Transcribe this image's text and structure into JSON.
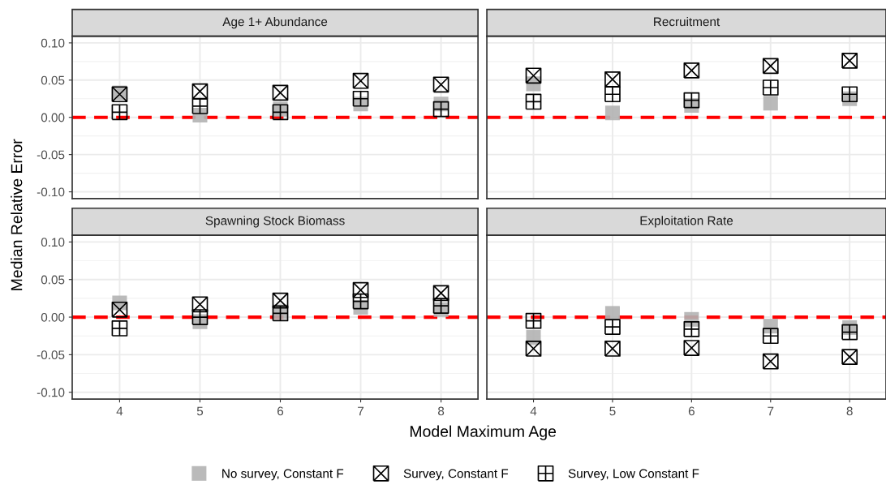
{
  "chart_data": [
    {
      "type": "scatter",
      "title": "Age 1+ Abundance",
      "ylabel": "Median Relative Error",
      "categories": [
        "4",
        "5",
        "6",
        "7",
        "8"
      ],
      "ylim": [
        -0.109,
        0.109
      ],
      "yticks": [
        {
          "value": -0.1,
          "label": "-0.10"
        },
        {
          "value": -0.05,
          "label": "-0.05"
        },
        {
          "value": 0,
          "label": "0.00"
        },
        {
          "value": 0.05,
          "label": "0.05"
        },
        {
          "value": 0.1,
          "label": "0.10"
        }
      ],
      "grid": true,
      "tick_labels": "y",
      "legend": "bottom",
      "ref_lines": [
        {
          "axis": "y",
          "value": 0,
          "color": "#ff0000",
          "line_style": "dashed"
        }
      ],
      "series": [
        {
          "name": "No survey, Constant F",
          "color": "#b3b3b3",
          "marker": "square",
          "values": [
            0.033,
            0.003,
            0.011,
            0.018,
            0.018
          ]
        },
        {
          "name": "Survey, Constant F",
          "color": "#000000",
          "marker": "cross",
          "values": [
            0.031,
            0.035,
            0.033,
            0.049,
            0.044
          ]
        },
        {
          "name": "Survey, Low Constant F",
          "color": "#000000",
          "marker": "plus",
          "values": [
            0.007,
            0.015,
            0.007,
            0.025,
            0.011
          ]
        }
      ]
    },
    {
      "type": "scatter",
      "title": "Recruitment",
      "categories": [
        "4",
        "5",
        "6",
        "7",
        "8"
      ],
      "ylim": [
        -0.109,
        0.109
      ],
      "yticks": [
        {
          "value": -0.1,
          "label": null
        },
        {
          "value": -0.05,
          "label": null
        },
        {
          "value": 0,
          "label": null
        },
        {
          "value": 0.05,
          "label": null
        },
        {
          "value": 0.1,
          "label": null
        }
      ],
      "grid": true,
      "tick_labels": false,
      "ref_lines": [
        {
          "axis": "y",
          "value": 0,
          "color": "#ff0000",
          "line_style": "dashed"
        }
      ],
      "series": [
        {
          "color": "#b3b3b3",
          "marker": "square",
          "values": [
            0.045,
            0.006,
            0.016,
            0.019,
            0.025
          ]
        },
        {
          "color": "#000000",
          "marker": "cross",
          "values": [
            0.056,
            0.051,
            0.063,
            0.069,
            0.076
          ]
        },
        {
          "color": "#000000",
          "marker": "plus",
          "values": [
            0.021,
            0.031,
            0.023,
            0.04,
            0.031
          ]
        }
      ]
    },
    {
      "type": "scatter",
      "title": "Spawning Stock Biomass",
      "categories": [
        "4",
        "5",
        "6",
        "7",
        "8"
      ],
      "ylim": [
        -0.109,
        0.109
      ],
      "yticks": [
        {
          "value": -0.1,
          "label": "-0.10"
        },
        {
          "value": -0.05,
          "label": "-0.05"
        },
        {
          "value": 0,
          "label": "0.00"
        },
        {
          "value": 0.05,
          "label": "0.05"
        },
        {
          "value": 0.1,
          "label": "0.10"
        }
      ],
      "grid": true,
      "ref_lines": [
        {
          "axis": "y",
          "value": 0,
          "color": "#ff0000",
          "line_style": "dashed"
        }
      ],
      "series": [
        {
          "color": "#b3b3b3",
          "marker": "square",
          "values": [
            0.019,
            -0.006,
            0.007,
            0.013,
            0.01
          ]
        },
        {
          "color": "#000000",
          "marker": "cross",
          "values": [
            0.01,
            0.017,
            0.022,
            0.036,
            0.032
          ]
        },
        {
          "color": "#000000",
          "marker": "plus",
          "values": [
            -0.015,
            0.0,
            0.005,
            0.021,
            0.015
          ]
        }
      ]
    },
    {
      "type": "scatter",
      "title": "Exploitation Rate",
      "xlabel": "Model Maximum Age",
      "categories": [
        "4",
        "5",
        "6",
        "7",
        "8"
      ],
      "ylim": [
        -0.109,
        0.109
      ],
      "yticks": [
        {
          "value": -0.1,
          "label": null
        },
        {
          "value": -0.05,
          "label": null
        },
        {
          "value": 0,
          "label": null
        },
        {
          "value": 0.05,
          "label": null
        },
        {
          "value": 0.1,
          "label": null
        }
      ],
      "grid": true,
      "tick_labels": "x",
      "ref_lines": [
        {
          "axis": "y",
          "value": 0,
          "color": "#ff0000",
          "line_style": "dashed"
        }
      ],
      "series": [
        {
          "color": "#b3b3b3",
          "marker": "square",
          "values": [
            -0.027,
            0.005,
            -0.003,
            -0.012,
            -0.014
          ]
        },
        {
          "color": "#000000",
          "marker": "cross",
          "values": [
            -0.042,
            -0.042,
            -0.041,
            -0.059,
            -0.053
          ]
        },
        {
          "color": "#000000",
          "marker": "plus",
          "values": [
            -0.005,
            -0.013,
            -0.016,
            -0.025,
            -0.02
          ]
        }
      ]
    }
  ]
}
